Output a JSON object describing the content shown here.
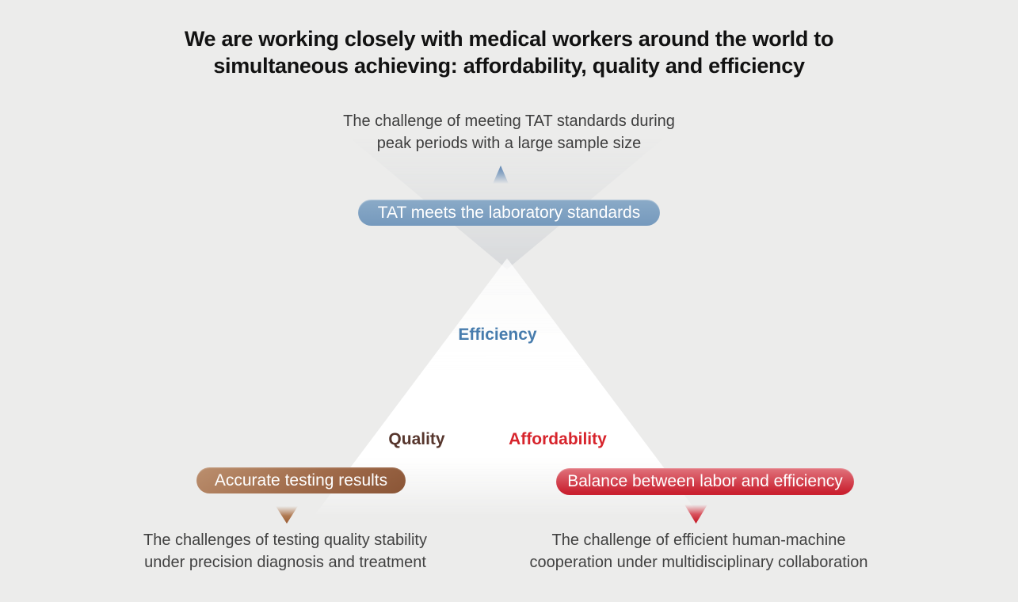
{
  "infographic": {
    "background_color": "#ececeb",
    "title": {
      "line1": "We are working closely with medical workers around the world to",
      "line2": "simultaneous achieving: affordability, quality and efficiency"
    },
    "efficiency_section": {
      "label": "Efficiency",
      "label_color": "#477cad",
      "pill_label": "TAT meets the laboratory standards",
      "pill_color": "#7da0c2",
      "arrow_icon": "up-arrow",
      "description_line1": "The challenge of meeting TAT standards during",
      "description_line2": "peak periods with a large sample size"
    },
    "quality_section": {
      "label": "Quality",
      "label_color": "#56352c",
      "pill_label": "Accurate testing results",
      "pill_color_start": "#bb8f6e",
      "pill_color_end": "#8a5536",
      "arrow_icon": "down-arrow",
      "description_line1": "The challenges of testing quality stability",
      "description_line2": "under precision diagnosis and treatment"
    },
    "affordability_section": {
      "label": "Affordability",
      "label_color": "#d7242c",
      "pill_label": "Balance between labor and efficiency",
      "pill_color_start": "#e0737c",
      "pill_color_end": "#ca2130",
      "arrow_icon": "down-arrow",
      "description_line1": "The challenge of efficient human-machine",
      "description_line2": "cooperation under multidisciplinary collaboration"
    }
  }
}
